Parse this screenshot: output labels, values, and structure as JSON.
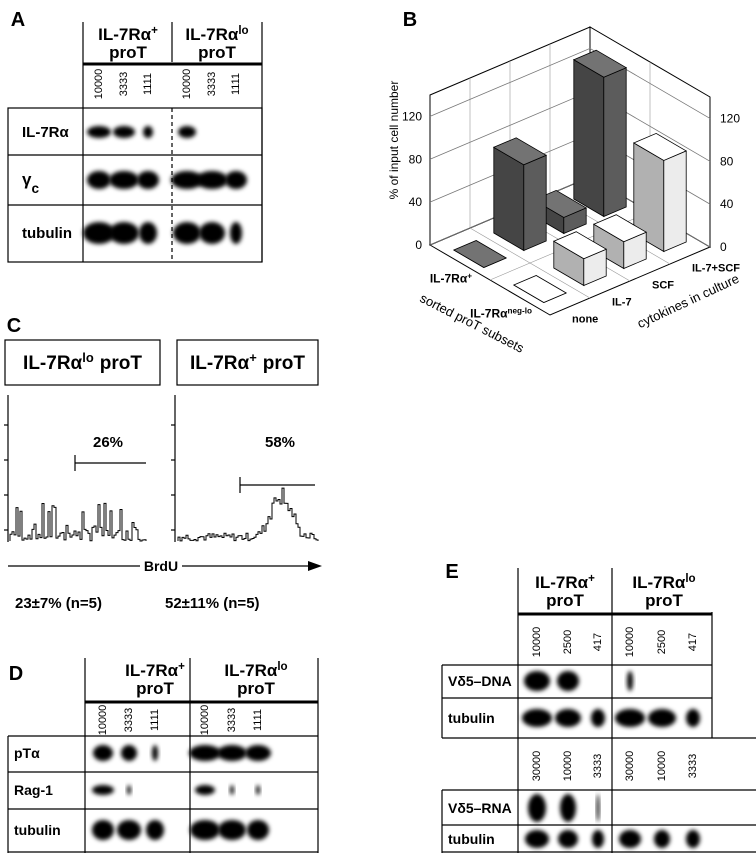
{
  "chart_data": {
    "type": "bar3d",
    "panel_label": "B",
    "ylabel": "% of input cell number",
    "xlabel": "cytokines in culture",
    "depth_label": "sorted proT subsets",
    "categories": [
      "none",
      "IL-7",
      "SCF",
      "IL-7+SCF"
    ],
    "series": [
      {
        "name": "IL-7Rα",
        "name_sup": "+",
        "color": "#5c5c5c",
        "values": [
          0,
          80,
          15,
          130
        ]
      },
      {
        "name": "IL-7Rα",
        "name_sup": "neg-lo",
        "color": "#ececec",
        "values": [
          0,
          25,
          25,
          85
        ]
      }
    ],
    "ylim": [
      0,
      140
    ],
    "yticks": [
      0,
      40,
      80,
      120
    ]
  },
  "panel_a": {
    "label": "A",
    "groups": [
      {
        "text": "IL-7Rα",
        "sup": "+",
        "line2": "proT",
        "lanes": [
          "10000",
          "3333",
          "1111"
        ]
      },
      {
        "text": "IL-7Rα",
        "sup": "lo",
        "line2": "proT",
        "lanes": [
          "10000",
          "3333",
          "1111"
        ]
      }
    ],
    "rows": [
      {
        "text": "IL-7Rα"
      },
      {
        "text": "γ",
        "sub": "c"
      },
      {
        "text": "tubulin"
      }
    ]
  },
  "panel_c": {
    "label": "C",
    "axis_label": "BrdU",
    "plots": [
      {
        "title": "IL-7Rα",
        "sup": "lo",
        "title2": "proT",
        "percent": "26%",
        "stat": "23±7% (n=5)"
      },
      {
        "title": "IL-7Rα",
        "sup": "+",
        "title2": "proT",
        "percent": "58%",
        "stat": "52±11% (n=5)"
      }
    ]
  },
  "panel_d": {
    "label": "D",
    "groups": [
      {
        "text": "IL-7Rα",
        "sup": "+",
        "line2": "proT",
        "lanes": [
          "10000",
          "3333",
          "1111"
        ]
      },
      {
        "text": "IL-7Rα",
        "sup": "lo",
        "line2": "proT",
        "lanes": [
          "10000",
          "3333",
          "1111"
        ]
      }
    ],
    "rows": [
      "pTα",
      "Rag-1",
      "tubulin"
    ]
  },
  "panel_e": {
    "label": "E",
    "groups": [
      {
        "text": "IL-7Rα",
        "sup": "+",
        "line2": "proT"
      },
      {
        "text": "IL-7Rα",
        "sup": "lo",
        "line2": "proT"
      }
    ],
    "blocks": [
      {
        "lanes": [
          [
            "10000",
            "2500",
            "417"
          ],
          [
            "10000",
            "2500",
            "417"
          ]
        ],
        "rows": [
          "Vδ5–DNA",
          "tubulin"
        ]
      },
      {
        "lanes": [
          [
            "30000",
            "10000",
            "3333"
          ],
          [
            "30000",
            "10000",
            "3333"
          ]
        ],
        "rows": [
          "Vδ5–RNA",
          "tubulin"
        ]
      }
    ]
  }
}
